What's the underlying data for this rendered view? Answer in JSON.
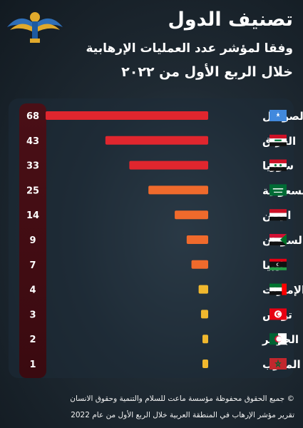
{
  "header": {
    "title": "تصنيف الدول",
    "subtitle": "وفقا لمؤشر عدد العمليات الإرهابية",
    "period": "خلال الربع الأول من ٢٠٢٢"
  },
  "colors": {
    "high": "#e0262e",
    "mid": "#ef6a2c",
    "low": "#f0b82e",
    "value_column": "#3a0a10"
  },
  "chart_data": {
    "type": "bar",
    "orientation": "horizontal",
    "categories": [
      "الصومال",
      "العراق",
      "سوريا",
      "السعودية",
      "اليمن",
      "السودان",
      "ليبيا",
      "الإمارات",
      "تونس",
      "الجزائر",
      "المغرب"
    ],
    "values": [
      68,
      43,
      33,
      25,
      14,
      9,
      7,
      4,
      3,
      2,
      1
    ],
    "flags": [
      "somalia-flag",
      "iraq-flag",
      "syria-flag",
      "saudi-arabia-flag",
      "yemen-flag",
      "sudan-flag",
      "libya-flag",
      "uae-flag",
      "tunisia-flag",
      "algeria-flag",
      "morocco-flag"
    ],
    "xlim": [
      0,
      68
    ],
    "grid": false,
    "legend": "none"
  },
  "footer": {
    "copyright": "© جميع الحقوق محفوظة مؤسسة ماعت للسلام والتنمية وحقوق الانسان",
    "report": "تقرير مؤشر الإرهاب في المنطقة العربية خلال الربع الأول من عام 2022"
  }
}
